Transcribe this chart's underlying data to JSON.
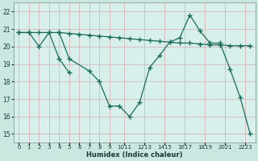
{
  "xlabel": "Humidex (Indice chaleur)",
  "bg_color": "#c8e8e0",
  "grid_color": "#d4b8b8",
  "line_color": "#1a6b5a",
  "plot_bg": "#d8f0ec",
  "xlim": [
    -0.5,
    23.5
  ],
  "ylim": [
    14.5,
    22.5
  ],
  "yticks": [
    15,
    16,
    17,
    18,
    19,
    20,
    21,
    22
  ],
  "xtick_labels": [
    "0",
    "1",
    "2",
    "3",
    "4",
    "5",
    "6",
    "7",
    "8",
    "9",
    "1011",
    "1213",
    "1415",
    "1617",
    "1819",
    "2021",
    "2223"
  ],
  "xtick_positions": [
    0,
    1,
    2,
    3,
    4,
    5,
    6,
    7,
    8,
    9,
    10.5,
    12.5,
    14.5,
    16.5,
    18.5,
    20.5,
    22.5
  ],
  "series1_x": [
    0,
    1,
    2,
    3,
    4,
    5,
    6,
    7,
    8,
    9,
    10,
    11,
    12,
    13,
    14,
    15,
    16,
    17,
    18,
    19,
    20,
    21,
    22,
    23
  ],
  "series1_y": [
    20.8,
    20.8,
    20.8,
    20.8,
    20.8,
    20.75,
    20.7,
    20.65,
    20.6,
    20.55,
    20.5,
    20.45,
    20.4,
    20.35,
    20.3,
    20.25,
    20.2,
    20.2,
    20.15,
    20.1,
    20.1,
    20.05,
    20.05,
    20.05
  ],
  "series2_x": [
    0,
    1,
    2,
    3,
    4,
    5
  ],
  "series2_y": [
    20.8,
    20.8,
    20.0,
    20.8,
    19.3,
    18.5
  ],
  "series3_x": [
    4,
    5,
    7,
    8,
    9,
    10,
    11,
    12,
    13,
    14,
    15,
    16,
    17,
    18,
    19,
    20,
    21,
    22,
    23
  ],
  "series3_y": [
    20.8,
    19.3,
    18.6,
    18.0,
    16.6,
    16.6,
    16.0,
    16.8,
    18.8,
    19.5,
    20.25,
    20.5,
    21.8,
    20.9,
    20.2,
    20.2,
    18.7,
    17.1,
    15.0
  ]
}
